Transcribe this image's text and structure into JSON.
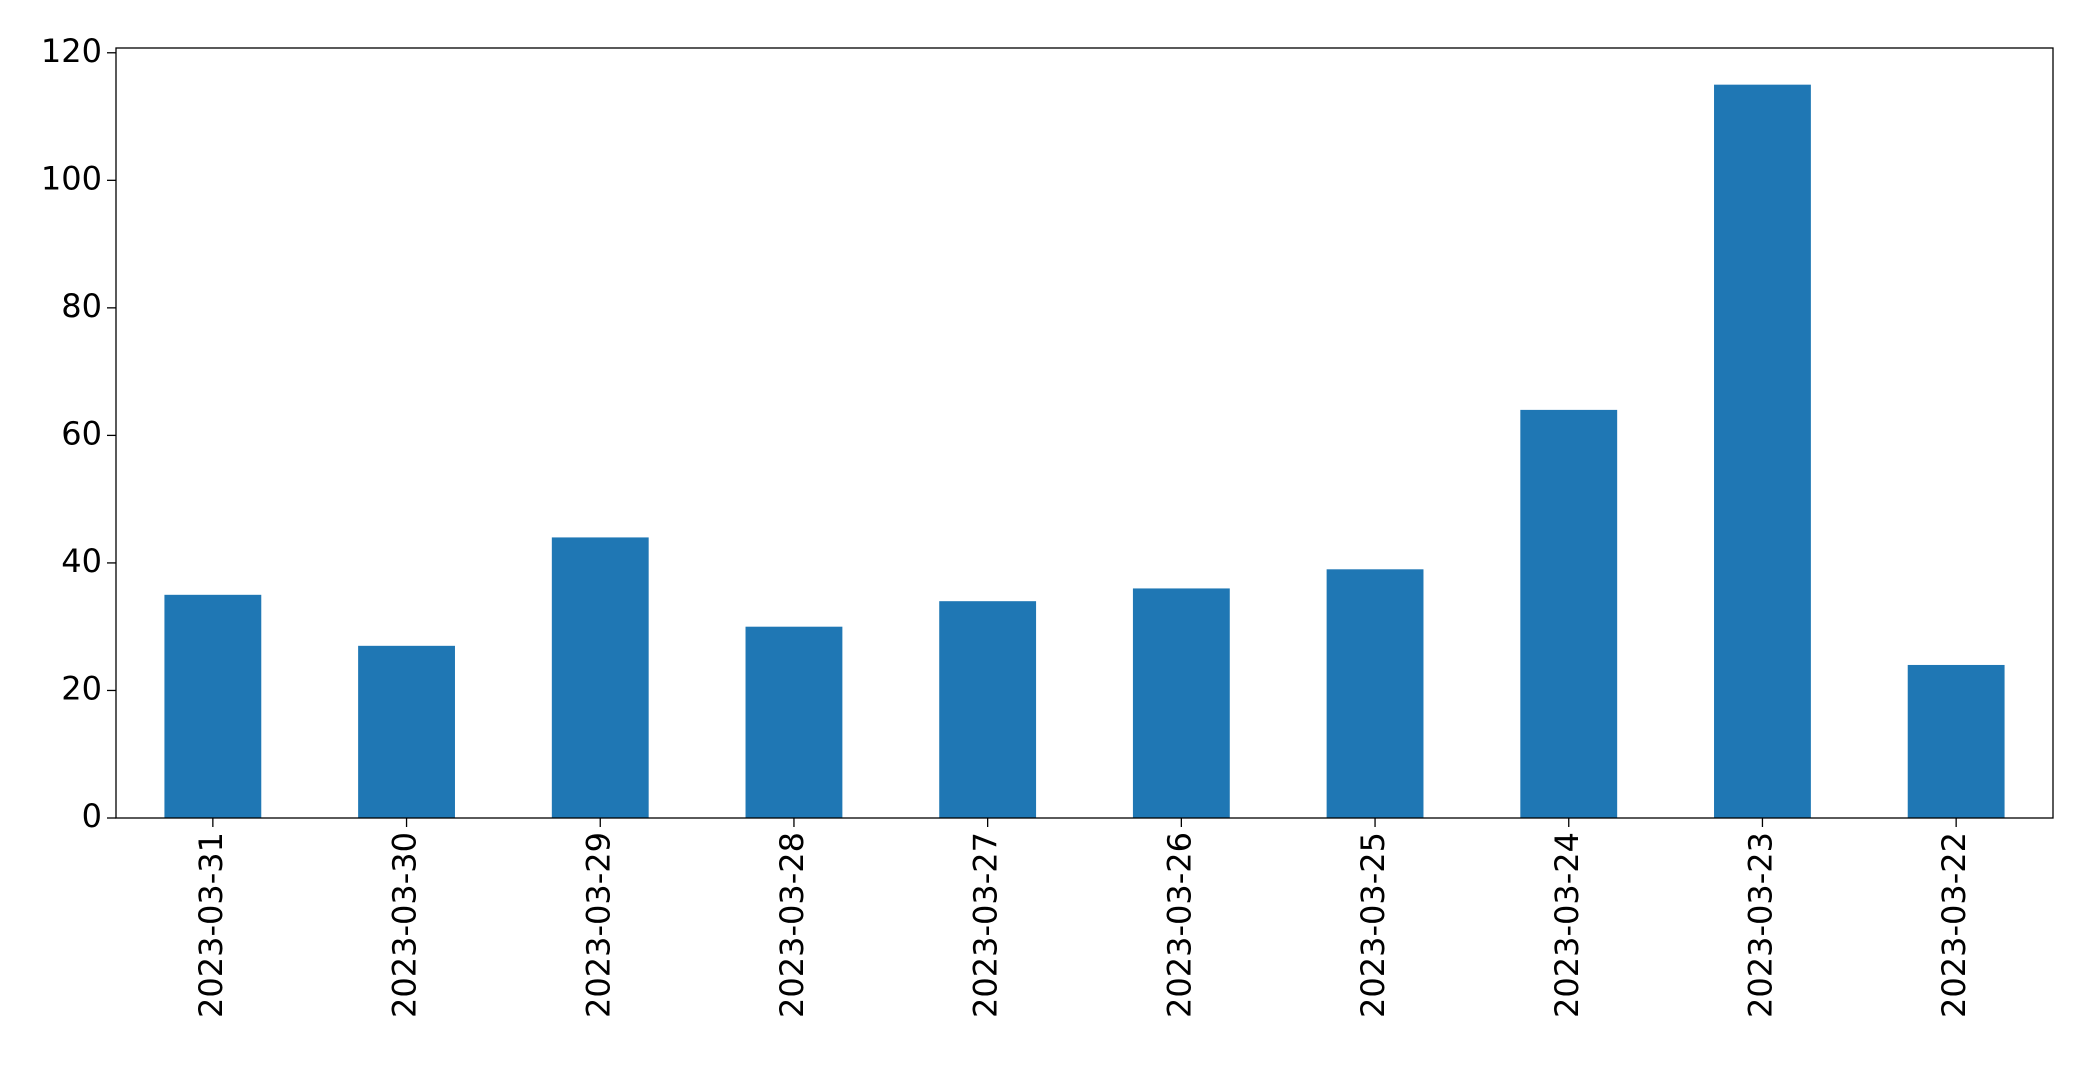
{
  "chart_data": {
    "type": "bar",
    "categories": [
      "2023-03-31",
      "2023-03-30",
      "2023-03-29",
      "2023-03-28",
      "2023-03-27",
      "2023-03-26",
      "2023-03-25",
      "2023-03-24",
      "2023-03-23",
      "2023-03-22"
    ],
    "values": [
      35,
      27,
      44,
      30,
      34,
      36,
      39,
      64,
      115,
      24
    ],
    "color": "#1f77b4",
    "ylim": [
      0,
      120.75
    ],
    "yticks": [
      0,
      20,
      40,
      60,
      80,
      100,
      120
    ],
    "grid": false
  }
}
